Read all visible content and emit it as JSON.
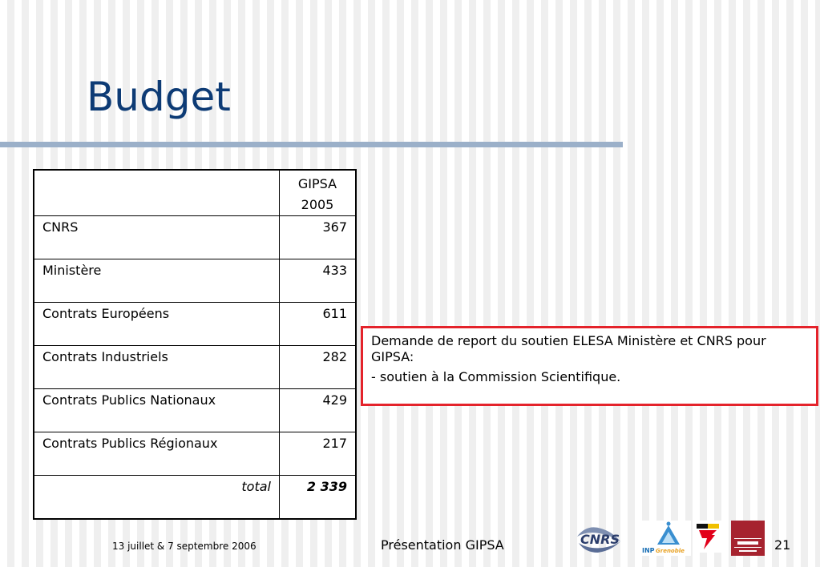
{
  "slide": {
    "title": "Budget",
    "table": {
      "header": {
        "line1": "GIPSA",
        "line2": "2005"
      },
      "rows": [
        {
          "label": "CNRS",
          "value": "367"
        },
        {
          "label": "Ministère",
          "value": "433"
        },
        {
          "label": "Contrats Européens",
          "value": "611"
        },
        {
          "label": "Contrats Industriels",
          "value": "282"
        },
        {
          "label": "Contrats Publics Nationaux",
          "value": "429"
        },
        {
          "label": "Contrats Publics Régionaux",
          "value": "217"
        }
      ],
      "total": {
        "label": "total",
        "value": "2 339"
      }
    },
    "note": {
      "line1": "Demande de report du soutien ELESA Ministère et CNRS pour GIPSA:",
      "line2": "- soutien à la Commission Scientifique."
    }
  },
  "footer": {
    "date": "13 juillet & 7 septembre 2006",
    "presentation": "Présentation GIPSA",
    "page": "21",
    "logos": [
      "cnrs-logo",
      "inp-grenoble-logo",
      "ujf-logo",
      "universite-stendhal-logo"
    ]
  },
  "colors": {
    "title": "#0d3b75",
    "rule": "#9bb0c9",
    "note_border": "#e4232b"
  }
}
